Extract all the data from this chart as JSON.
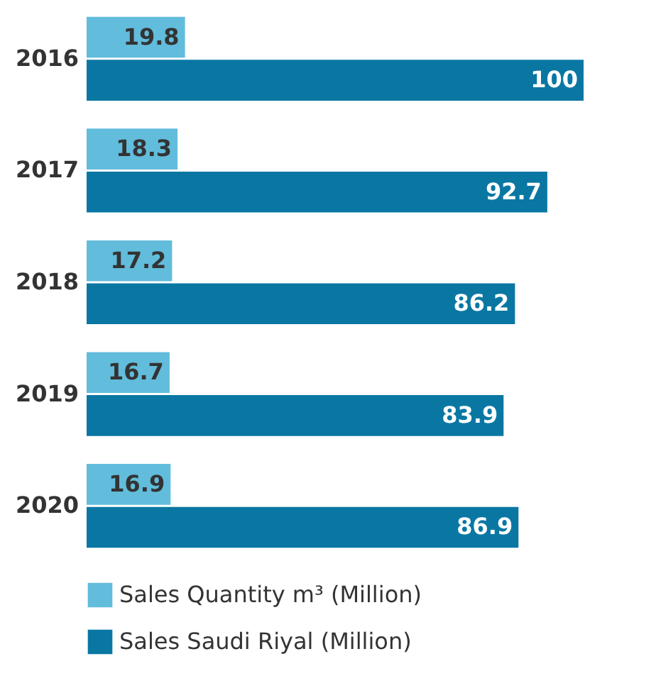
{
  "chart_data": {
    "type": "bar",
    "orientation": "horizontal",
    "categories": [
      "2016",
      "2017",
      "2018",
      "2019",
      "2020"
    ],
    "series": [
      {
        "name": "Sales Quantity m³ (Million)",
        "color": "#62bcdc",
        "values": [
          19.8,
          18.3,
          17.2,
          16.7,
          16.9
        ]
      },
      {
        "name": "Sales Saudi Riyal (Million)",
        "color": "#0a77a3",
        "values": [
          100,
          92.7,
          86.2,
          83.9,
          86.9
        ]
      }
    ],
    "data_labels": true,
    "legend": "bottom"
  }
}
